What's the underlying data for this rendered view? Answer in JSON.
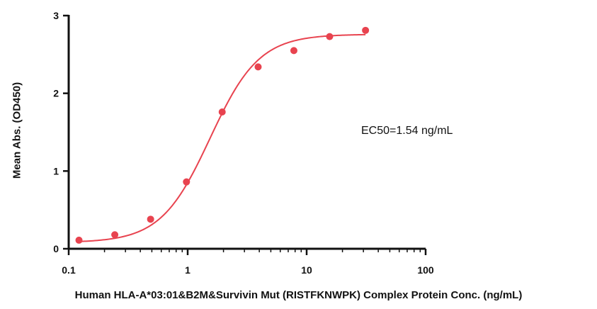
{
  "chart_data": {
    "type": "scatter",
    "title": "",
    "xlabel": "Human HLA-A*03:01&B2M&Survivin Mut (RISTFKNWPK) Complex Protein Conc. (ng/mL)",
    "ylabel": "Mean Abs. (OD450)",
    "x_scale": "log",
    "xlim": [
      0.1,
      100
    ],
    "ylim": [
      0,
      3
    ],
    "x_ticks": [
      0.1,
      1,
      10,
      100
    ],
    "x_tick_labels": [
      "0.1",
      "1",
      "10",
      "100"
    ],
    "y_ticks": [
      0,
      1,
      2,
      3
    ],
    "y_tick_labels": [
      "0",
      "1",
      "2",
      "3"
    ],
    "grid": false,
    "series": [
      {
        "x": [
          0.122,
          0.244,
          0.488,
          0.977,
          1.95,
          3.91,
          7.81,
          15.6,
          31.25
        ],
        "y": [
          0.11,
          0.18,
          0.38,
          0.86,
          1.76,
          2.34,
          2.55,
          2.73,
          2.81
        ],
        "color": "#e8434f",
        "fit": {
          "model": "4PL",
          "bottom": 0.08,
          "top": 2.76,
          "ec50": 1.54,
          "hill": 2.1
        }
      }
    ],
    "annotations": [
      {
        "text": "EC50=1.54 ng/mL"
      }
    ]
  }
}
